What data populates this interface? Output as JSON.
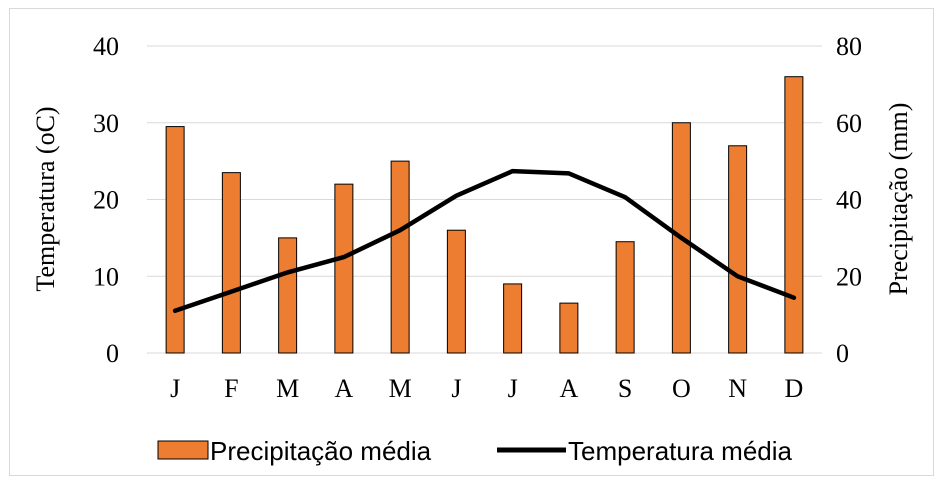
{
  "chart_data": {
    "type": "bar+line",
    "categories": [
      "J",
      "F",
      "M",
      "A",
      "M",
      "J",
      "J",
      "A",
      "S",
      "O",
      "N",
      "D"
    ],
    "series": [
      {
        "name": "Precipitação média",
        "type": "bar",
        "axis": "right",
        "color": "#ED7D31",
        "values": [
          59,
          47,
          30,
          44,
          50,
          32,
          18,
          13,
          29,
          60,
          54,
          72
        ]
      },
      {
        "name": "Temperatura média",
        "type": "line",
        "axis": "left",
        "color": "#000000",
        "values": [
          5.5,
          8.0,
          10.5,
          12.5,
          16.0,
          20.5,
          23.7,
          23.4,
          20.3,
          15.0,
          10.0,
          7.2
        ]
      }
    ],
    "y_left": {
      "label": "Temperatura (oC)",
      "ylim": [
        0,
        40
      ],
      "ticks": [
        0,
        10,
        20,
        30,
        40
      ]
    },
    "y_right": {
      "label": "Precipitação (mm)",
      "ylim": [
        0,
        80
      ],
      "ticks": [
        0,
        20,
        40,
        60,
        80
      ]
    },
    "grid": true,
    "legend_position": "bottom"
  }
}
